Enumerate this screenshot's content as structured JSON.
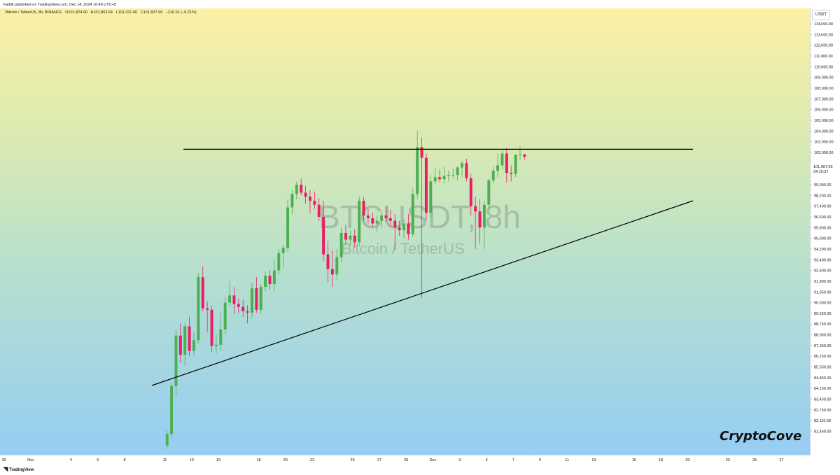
{
  "header": {
    "published": "Falbik published on TradingView.com, Dec 14, 2024 16:40 UTC+5"
  },
  "symbol_line": {
    "name": "Bitcoin / TetherUS, 8h, BINANCE",
    "open": "O101,824.00",
    "high": "H101,863.64",
    "low": "L101,321.00",
    "close": "C101,607.99",
    "change": "−216.01 (−0.21%)"
  },
  "watermark": {
    "symbol": "BTCUSDT, 8h",
    "name": "Bitcoin / TetherUS"
  },
  "brand": "CryptoCove",
  "footer": "TradingView",
  "price_axis": {
    "currency": "USDT",
    "last_price": "101,607.99",
    "countdown": "04:19:37"
  },
  "colors": {
    "up": "#4caf50",
    "down": "#e91e63",
    "line": "#000000"
  },
  "chart_data": {
    "type": "candlestick",
    "title": "BTCUSDT, 8h",
    "y_ticks": [
      114000,
      113000,
      112000,
      111000,
      110000,
      109000,
      108000,
      107000,
      106000,
      105000,
      104000,
      103000,
      102000,
      100000,
      99000,
      98200,
      97400,
      96600,
      95800,
      95000,
      94200,
      93400,
      92600,
      91800,
      91050,
      90300,
      89550,
      88750,
      88050,
      87350,
      86250,
      85550,
      84850,
      84150,
      83450,
      82750,
      82110,
      81460
    ],
    "y_tick_labels": [
      "114,000.00",
      "113,000.00",
      "112,000.00",
      "111,000.00",
      "110,000.00",
      "109,000.00",
      "108,000.00",
      "107,000.00",
      "106,000.00",
      "105,000.00",
      "104,000.00",
      "103,000.00",
      "102,000.00",
      "100,000.00",
      "99,000.00",
      "98,200.00",
      "97,400.00",
      "96,600.00",
      "95,800.00",
      "95,000.00",
      "94,200.00",
      "93,400.00",
      "92,600.00",
      "91,800.00",
      "91,050.00",
      "90,300.00",
      "89,550.00",
      "88,750.00",
      "88,050.00",
      "87,350.00",
      "86,250.00",
      "85,550.00",
      "84,850.00",
      "84,150.00",
      "83,450.00",
      "82,750.00",
      "82,110.00",
      "81,460.00"
    ],
    "x_ticks": [
      {
        "label": "30",
        "day": -1
      },
      {
        "label": "Nov",
        "day": 1
      },
      {
        "label": "4",
        "day": 4
      },
      {
        "label": "6",
        "day": 6
      },
      {
        "label": "8",
        "day": 8
      },
      {
        "label": "11",
        "day": 11
      },
      {
        "label": "13",
        "day": 13
      },
      {
        "label": "15",
        "day": 15
      },
      {
        "label": "18",
        "day": 18
      },
      {
        "label": "20",
        "day": 20
      },
      {
        "label": "22",
        "day": 22
      },
      {
        "label": "25",
        "day": 25
      },
      {
        "label": "27",
        "day": 27
      },
      {
        "label": "29",
        "day": 29
      },
      {
        "label": "Dec",
        "day": 31
      },
      {
        "label": "3",
        "day": 33
      },
      {
        "label": "5",
        "day": 35
      },
      {
        "label": "7",
        "day": 37
      },
      {
        "label": "9",
        "day": 39
      },
      {
        "label": "11",
        "day": 41
      },
      {
        "label": "13",
        "day": 43
      },
      {
        "label": "16",
        "day": 46
      },
      {
        "label": "18",
        "day": 48
      },
      {
        "label": "20",
        "day": 50
      },
      {
        "label": "23",
        "day": 53
      },
      {
        "label": "25",
        "day": 55
      },
      {
        "label": "27",
        "day": 57
      }
    ],
    "candles": [
      [
        80600,
        81500,
        80400,
        81300
      ],
      [
        81300,
        84500,
        81100,
        84300
      ],
      [
        84300,
        88400,
        83600,
        88000
      ],
      [
        88000,
        88800,
        85800,
        86400
      ],
      [
        86400,
        88800,
        85600,
        88600
      ],
      [
        88600,
        89300,
        86300,
        86800
      ],
      [
        86800,
        88200,
        86300,
        87700
      ],
      [
        87700,
        92400,
        87500,
        92100
      ],
      [
        92100,
        92900,
        89700,
        89900
      ],
      [
        89900,
        90400,
        88200,
        89800
      ],
      [
        89800,
        90100,
        86700,
        87300
      ],
      [
        87300,
        88100,
        86500,
        87400
      ],
      [
        87400,
        89600,
        86900,
        88400
      ],
      [
        88400,
        90700,
        88100,
        90300
      ],
      [
        90300,
        91800,
        90100,
        90800
      ],
      [
        90800,
        91400,
        89500,
        90200
      ],
      [
        90200,
        90600,
        89600,
        90000
      ],
      [
        90000,
        90500,
        89300,
        89700
      ],
      [
        89700,
        90100,
        88800,
        89600
      ],
      [
        89600,
        91700,
        89200,
        91300
      ],
      [
        91300,
        92100,
        89600,
        89800
      ],
      [
        89800,
        91600,
        89500,
        91400
      ],
      [
        91400,
        92500,
        91100,
        92200
      ],
      [
        92200,
        92600,
        91200,
        91600
      ],
      [
        91600,
        93400,
        91100,
        92600
      ],
      [
        92600,
        94200,
        92300,
        93900
      ],
      [
        93900,
        94500,
        92800,
        94300
      ],
      [
        94300,
        97900,
        94000,
        97300
      ],
      [
        97300,
        98600,
        96800,
        98300
      ],
      [
        98300,
        99300,
        97900,
        99000
      ],
      [
        99000,
        99600,
        98200,
        98400
      ],
      [
        98400,
        98900,
        97600,
        98100
      ],
      [
        98100,
        98600,
        96900,
        97800
      ],
      [
        97800,
        98500,
        97200,
        97500
      ],
      [
        97500,
        98000,
        96300,
        96600
      ],
      [
        96600,
        97800,
        93300,
        93800
      ],
      [
        93800,
        94800,
        91700,
        92700
      ],
      [
        92700,
        94100,
        91400,
        92300
      ],
      [
        92300,
        94200,
        91900,
        93600
      ],
      [
        93600,
        95800,
        93200,
        95400
      ],
      [
        95400,
        96000,
        94500,
        94900
      ],
      [
        94900,
        95600,
        94400,
        95200
      ],
      [
        95200,
        95700,
        94300,
        94700
      ],
      [
        94700,
        98100,
        94400,
        97800
      ],
      [
        97800,
        98100,
        96300,
        96700
      ],
      [
        96700,
        97200,
        96100,
        96500
      ],
      [
        96500,
        96900,
        95800,
        96100
      ],
      [
        96100,
        96700,
        95500,
        96300
      ],
      [
        96300,
        97000,
        95800,
        96700
      ],
      [
        96700,
        97400,
        96200,
        96500
      ],
      [
        96500,
        97100,
        95900,
        96300
      ],
      [
        96300,
        96800,
        94100,
        95800
      ],
      [
        95800,
        96300,
        95200,
        95600
      ],
      [
        95600,
        96400,
        95000,
        96100
      ],
      [
        96100,
        96800,
        94900,
        95300
      ],
      [
        95300,
        98700,
        95100,
        98300
      ],
      [
        98300,
        104000,
        97900,
        102500
      ],
      [
        102500,
        103400,
        90600,
        101500
      ],
      [
        101500,
        101900,
        96300,
        96900
      ],
      [
        96900,
        99900,
        96500,
        99300
      ],
      [
        99300,
        100600,
        99000,
        99700
      ],
      [
        99700,
        100400,
        99200,
        99500
      ],
      [
        99500,
        100700,
        99100,
        99800
      ],
      [
        99800,
        100300,
        99300,
        99900
      ],
      [
        99900,
        100500,
        99600,
        99900
      ],
      [
        99900,
        100700,
        99400,
        100600
      ],
      [
        100600,
        101200,
        99700,
        101000
      ],
      [
        101000,
        101400,
        99300,
        99600
      ],
      [
        99600,
        100000,
        96700,
        97400
      ],
      [
        97400,
        98100,
        94200,
        97000
      ],
      [
        97000,
        97900,
        94600,
        95800
      ],
      [
        95800,
        97800,
        94200,
        97500
      ],
      [
        97500,
        99600,
        97200,
        99400
      ],
      [
        99400,
        100700,
        99100,
        100300
      ],
      [
        100300,
        101900,
        99700,
        100800
      ],
      [
        100800,
        102200,
        100400,
        101900
      ],
      [
        101900,
        102400,
        99200,
        100100
      ],
      [
        100100,
        100800,
        99300,
        100000
      ],
      [
        100000,
        101800,
        99700,
        101800
      ],
      [
        101800,
        102600,
        101300,
        101824
      ],
      [
        101824,
        101863.64,
        101321,
        101607.99
      ]
    ]
  }
}
